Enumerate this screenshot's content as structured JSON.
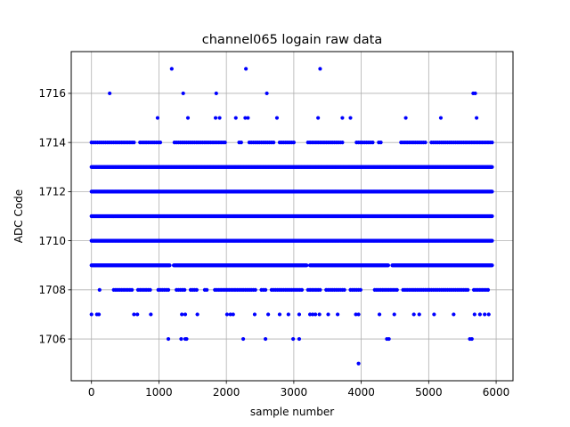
{
  "chart_data": {
    "type": "scatter",
    "title": "channel065 logain raw data",
    "xlabel": "sample number",
    "ylabel": "ADC Code",
    "xlim": [
      -300,
      6250
    ],
    "ylim": [
      1704.3,
      1717.7
    ],
    "x_ticks": [
      0,
      1000,
      2000,
      3000,
      4000,
      5000,
      6000
    ],
    "y_ticks": [
      1706,
      1708,
      1710,
      1712,
      1714,
      1716
    ],
    "grid": true,
    "marker_color": "#0000ff",
    "total_samples": 5940,
    "series": [
      {
        "dense_levels": [
          1710,
          1711,
          1712,
          1713
        ],
        "level_1709_gaps": [
          [
            1165,
            1215
          ],
          [
            3195,
            3235
          ],
          [
            4410,
            4450
          ]
        ],
        "level_1714_gaps": [
          [
            650,
            700
          ],
          [
            1050,
            1200
          ],
          [
            2000,
            2160
          ],
          [
            2230,
            2320
          ],
          [
            2720,
            2760
          ],
          [
            3020,
            3180
          ],
          [
            3740,
            3900
          ],
          [
            4180,
            4240
          ],
          [
            4300,
            4580
          ],
          [
            4960,
            5020
          ]
        ],
        "level_1708_gaps": [
          [
            0,
            90
          ],
          [
            140,
            220
          ],
          [
            230,
            300
          ],
          [
            620,
            680
          ],
          [
            900,
            980
          ],
          [
            1160,
            1250
          ],
          [
            1400,
            1440
          ],
          [
            1570,
            1650
          ],
          [
            1730,
            1810
          ],
          [
            2440,
            2500
          ],
          [
            2600,
            2650
          ],
          [
            3140,
            3180
          ],
          [
            3400,
            3450
          ],
          [
            3760,
            3830
          ],
          [
            4000,
            4180
          ],
          [
            4560,
            4600
          ],
          [
            5600,
            5660
          ]
        ],
        "sparse_points": [
          [
            0,
            1707
          ],
          [
            80,
            1707
          ],
          [
            110,
            1707
          ],
          [
            630,
            1707
          ],
          [
            680,
            1707
          ],
          [
            880,
            1707
          ],
          [
            1340,
            1707
          ],
          [
            1390,
            1707
          ],
          [
            1570,
            1707
          ],
          [
            2010,
            1707
          ],
          [
            2060,
            1707
          ],
          [
            2100,
            1707
          ],
          [
            2420,
            1707
          ],
          [
            2620,
            1707
          ],
          [
            2790,
            1707
          ],
          [
            2920,
            1707
          ],
          [
            3080,
            1707
          ],
          [
            3240,
            1707
          ],
          [
            3280,
            1707
          ],
          [
            3320,
            1707
          ],
          [
            3380,
            1707
          ],
          [
            3510,
            1707
          ],
          [
            3650,
            1707
          ],
          [
            3920,
            1707
          ],
          [
            3960,
            1707
          ],
          [
            4270,
            1707
          ],
          [
            4490,
            1707
          ],
          [
            4780,
            1707
          ],
          [
            4860,
            1707
          ],
          [
            5080,
            1707
          ],
          [
            5370,
            1707
          ],
          [
            5680,
            1707
          ],
          [
            5760,
            1707
          ],
          [
            5830,
            1707
          ],
          [
            5890,
            1707
          ],
          [
            1140,
            1706
          ],
          [
            1330,
            1706
          ],
          [
            1390,
            1706
          ],
          [
            1410,
            1706
          ],
          [
            2250,
            1706
          ],
          [
            2580,
            1706
          ],
          [
            2990,
            1706
          ],
          [
            3080,
            1706
          ],
          [
            4380,
            1706
          ],
          [
            4410,
            1706
          ],
          [
            5610,
            1706
          ],
          [
            5640,
            1706
          ],
          [
            3960,
            1705
          ],
          [
            980,
            1715
          ],
          [
            1430,
            1715
          ],
          [
            1840,
            1715
          ],
          [
            1900,
            1715
          ],
          [
            2140,
            1715
          ],
          [
            2280,
            1715
          ],
          [
            2320,
            1715
          ],
          [
            2750,
            1715
          ],
          [
            3360,
            1715
          ],
          [
            3720,
            1715
          ],
          [
            3840,
            1715
          ],
          [
            4660,
            1715
          ],
          [
            5180,
            1715
          ],
          [
            5710,
            1715
          ],
          [
            270,
            1716
          ],
          [
            1360,
            1716
          ],
          [
            1850,
            1716
          ],
          [
            2600,
            1716
          ],
          [
            5660,
            1716
          ],
          [
            5690,
            1716
          ],
          [
            1190,
            1717
          ],
          [
            2290,
            1717
          ],
          [
            3390,
            1717
          ]
        ]
      }
    ]
  }
}
